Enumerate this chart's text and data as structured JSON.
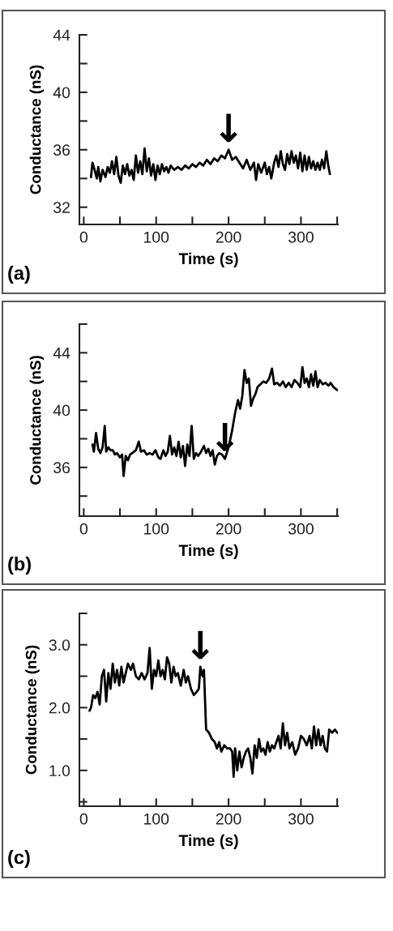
{
  "chart_data": [
    {
      "type": "line",
      "xlabel": "Time (s)",
      "ylabel": "Conductance (nS)",
      "xlim": [
        -6,
        351
      ],
      "ylim": [
        30.8,
        44
      ],
      "xticks": [
        0,
        {
          "value": 50,
          "label": null
        },
        100,
        {
          "value": 150,
          "label": null
        },
        200,
        {
          "value": 250,
          "label": null
        },
        300,
        {
          "value": 350,
          "label": null
        }
      ],
      "yticks": [
        32,
        {
          "value": 34,
          "label": null
        },
        36,
        {
          "value": 38,
          "label": null
        },
        40,
        {
          "value": 42,
          "label": null
        },
        44
      ],
      "annotations": [
        "(a)",
        {
          "text": "↓",
          "x": 200,
          "y": 36.0
        }
      ],
      "series": [
        {
          "color": "#000000",
          "x": [
            10,
            12,
            15,
            18,
            20,
            23,
            26,
            30,
            33,
            36,
            39,
            42,
            45,
            48,
            51,
            54,
            57,
            60,
            63,
            66,
            69,
            72,
            75,
            78,
            81,
            84,
            87,
            90,
            93,
            96,
            99,
            102,
            105,
            108,
            111,
            114,
            117,
            120,
            125,
            130,
            135,
            140,
            145,
            150,
            155,
            160,
            165,
            170,
            175,
            180,
            185,
            190,
            195,
            200,
            205,
            210,
            215,
            220,
            225,
            230,
            235,
            238,
            241,
            245,
            250,
            253,
            256,
            259,
            263,
            266,
            269,
            272,
            275,
            278,
            281,
            284,
            287,
            290,
            293,
            296,
            299,
            302,
            305,
            308,
            311,
            314,
            317,
            320,
            323,
            326,
            329,
            332,
            335,
            338,
            340
          ],
          "values": [
            34.1,
            35.1,
            34.6,
            34.0,
            34.8,
            33.8,
            34.6,
            34.1,
            34.8,
            34.4,
            35.2,
            34.3,
            35.5,
            34.2,
            33.7,
            34.9,
            34.3,
            35.0,
            34.2,
            34.6,
            33.9,
            35.6,
            34.4,
            35.2,
            34.3,
            36.1,
            34.5,
            35.4,
            34.2,
            35.0,
            33.9,
            34.9,
            34.3,
            35.0,
            34.5,
            34.8,
            34.4,
            34.9,
            34.6,
            34.8,
            34.6,
            34.9,
            34.7,
            35.0,
            34.8,
            35.1,
            34.9,
            35.3,
            35.0,
            35.4,
            35.2,
            35.6,
            35.4,
            36.0,
            35.3,
            35.5,
            35.1,
            34.7,
            35.3,
            34.6,
            35.1,
            33.9,
            35.0,
            34.4,
            35.1,
            34.3,
            34.8,
            34.0,
            35.1,
            35.6,
            34.8,
            35.9,
            35.0,
            34.6,
            35.7,
            35.0,
            35.9,
            35.1,
            35.6,
            34.7,
            35.8,
            34.5,
            35.6,
            34.6,
            35.5,
            34.7,
            35.2,
            34.6,
            35.1,
            34.6,
            35.3,
            34.7,
            35.9,
            34.8,
            34.3
          ]
        }
      ]
    },
    {
      "type": "line",
      "xlabel": "Time (s)",
      "ylabel": "Conductance (nS)",
      "xlim": [
        -6,
        351
      ],
      "ylim": [
        32.6,
        46
      ],
      "xticks": [
        0,
        {
          "value": 50,
          "label": null
        },
        100,
        {
          "value": 150,
          "label": null
        },
        200,
        {
          "value": 250,
          "label": null
        },
        300,
        {
          "value": 350,
          "label": null
        }
      ],
      "yticks": [
        {
          "value": 34,
          "label": null
        },
        36,
        {
          "value": 38,
          "label": null
        },
        40,
        {
          "value": 42,
          "label": null
        },
        44,
        {
          "value": 46,
          "label": null
        }
      ],
      "annotations": [
        "(b)",
        {
          "text": "↓",
          "x": 195,
          "y": 36.6
        }
      ],
      "series": [
        {
          "color": "#000000",
          "x": [
            12,
            14,
            17,
            20,
            23,
            26,
            29,
            31,
            34,
            37,
            40,
            43,
            46,
            50,
            53,
            55,
            58,
            61,
            64,
            67,
            72,
            76,
            79,
            83,
            87,
            91,
            95,
            99,
            103,
            106,
            110,
            113,
            116,
            119,
            122,
            125,
            128,
            131,
            134,
            137,
            140,
            143,
            146,
            149,
            152,
            155,
            158,
            162,
            166,
            169,
            172,
            175,
            178,
            181,
            184,
            187,
            191,
            195,
            200,
            205,
            209,
            213,
            216,
            219,
            222,
            225,
            228,
            231,
            234,
            237,
            240,
            244,
            248,
            252,
            256,
            260,
            263,
            267,
            271,
            275,
            279,
            283,
            287,
            291,
            295,
            299,
            302,
            305,
            308,
            311,
            314,
            317,
            320,
            323,
            326,
            330,
            334,
            338,
            341,
            345,
            350
          ],
          "values": [
            37.6,
            37.1,
            38.4,
            37.3,
            37.0,
            37.4,
            38.9,
            37.1,
            37.4,
            37.2,
            37.2,
            36.9,
            37.0,
            36.7,
            36.9,
            35.4,
            36.8,
            36.5,
            36.9,
            37.0,
            37.2,
            37.8,
            37.1,
            37.2,
            36.9,
            37.0,
            36.9,
            37.2,
            36.7,
            36.6,
            37.2,
            36.8,
            37.1,
            38.2,
            36.9,
            37.4,
            36.8,
            37.8,
            36.7,
            37.5,
            36.1,
            37.6,
            36.8,
            38.9,
            36.6,
            37.0,
            36.8,
            37.1,
            37.5,
            37.0,
            37.3,
            36.8,
            37.2,
            36.2,
            36.8,
            37.0,
            36.9,
            36.6,
            37.4,
            38.6,
            39.8,
            40.7,
            40.1,
            41.0,
            42.8,
            41.9,
            42.2,
            40.3,
            40.8,
            41.1,
            41.6,
            41.8,
            42.0,
            41.9,
            42.2,
            42.9,
            41.8,
            41.9,
            41.7,
            42.0,
            41.6,
            41.9,
            41.6,
            42.1,
            41.9,
            41.6,
            43.0,
            41.9,
            42.2,
            41.6,
            42.5,
            41.7,
            42.7,
            41.6,
            42.1,
            41.8,
            41.9,
            41.7,
            41.9,
            41.6,
            41.4
          ]
        }
      ]
    },
    {
      "type": "line",
      "xlabel": "Time (s)",
      "ylabel": "Conductance (nS)",
      "xlim": [
        -6,
        351
      ],
      "ylim": [
        0.43,
        3.5
      ],
      "xticks": [
        0,
        {
          "value": 50,
          "label": null
        },
        100,
        {
          "value": 150,
          "label": null
        },
        200,
        {
          "value": 250,
          "label": null
        },
        300,
        {
          "value": 350,
          "label": null
        }
      ],
      "yticks": [
        {
          "value": 0.5,
          "label": null
        },
        {
          "value": 1,
          "label": "1.0"
        },
        {
          "value": 1.5,
          "label": null
        },
        {
          "value": 2,
          "label": "2.0"
        },
        {
          "value": 2.5,
          "label": null
        },
        {
          "value": 3,
          "label": "3.0"
        },
        {
          "value": 3.5,
          "label": null
        }
      ],
      "annotations": [
        "(c)",
        {
          "text": "↓",
          "x": 161,
          "y": 2.65
        }
      ],
      "series": [
        {
          "color": "#000000",
          "x": [
            8,
            10,
            13,
            16,
            19,
            22,
            25,
            28,
            31,
            34,
            37,
            40,
            43,
            46,
            49,
            52,
            55,
            58,
            61,
            65,
            68,
            72,
            76,
            80,
            84,
            88,
            91,
            94,
            97,
            100,
            103,
            106,
            109,
            112,
            115,
            118,
            121,
            124,
            127,
            130,
            134,
            138,
            141,
            144,
            148,
            152,
            156,
            159,
            161,
            164,
            166,
            169,
            173,
            177,
            181,
            184,
            187,
            190,
            194,
            198,
            202,
            205,
            207,
            209,
            212,
            215,
            218,
            221,
            224,
            227,
            230,
            233,
            236,
            239,
            242,
            245,
            248,
            251,
            254,
            257,
            260,
            263,
            266,
            269,
            272,
            275,
            278,
            281,
            284,
            288,
            292,
            296,
            300,
            304,
            308,
            312,
            315,
            318,
            321,
            324,
            327,
            330,
            333,
            336,
            339,
            343,
            347,
            350
          ],
          "values": [
            1.95,
            2.0,
            2.2,
            2.15,
            2.25,
            2.05,
            2.5,
            2.6,
            2.1,
            2.55,
            2.3,
            2.7,
            2.4,
            2.6,
            2.35,
            2.65,
            2.4,
            2.55,
            2.7,
            2.6,
            2.7,
            2.5,
            2.45,
            2.55,
            2.45,
            2.55,
            2.95,
            2.3,
            2.6,
            2.5,
            2.75,
            2.5,
            2.6,
            2.45,
            2.8,
            2.7,
            2.4,
            2.65,
            2.5,
            2.55,
            2.35,
            2.6,
            2.4,
            2.5,
            2.3,
            2.2,
            2.25,
            2.3,
            2.65,
            2.5,
            2.6,
            1.65,
            1.6,
            1.5,
            1.45,
            1.35,
            1.45,
            1.3,
            1.4,
            1.35,
            1.35,
            1.3,
            0.9,
            1.35,
            1.0,
            1.3,
            1.05,
            1.2,
            1.3,
            1.35,
            1.2,
            0.95,
            1.4,
            1.2,
            1.5,
            1.3,
            1.35,
            1.25,
            1.45,
            1.3,
            1.4,
            1.35,
            1.45,
            1.55,
            1.35,
            1.75,
            1.4,
            1.6,
            1.35,
            1.45,
            1.25,
            1.35,
            1.55,
            1.5,
            1.4,
            1.55,
            1.35,
            1.7,
            1.4,
            1.65,
            1.4,
            1.55,
            1.35,
            1.3,
            1.65,
            1.6,
            1.65,
            1.6
          ]
        }
      ]
    }
  ]
}
